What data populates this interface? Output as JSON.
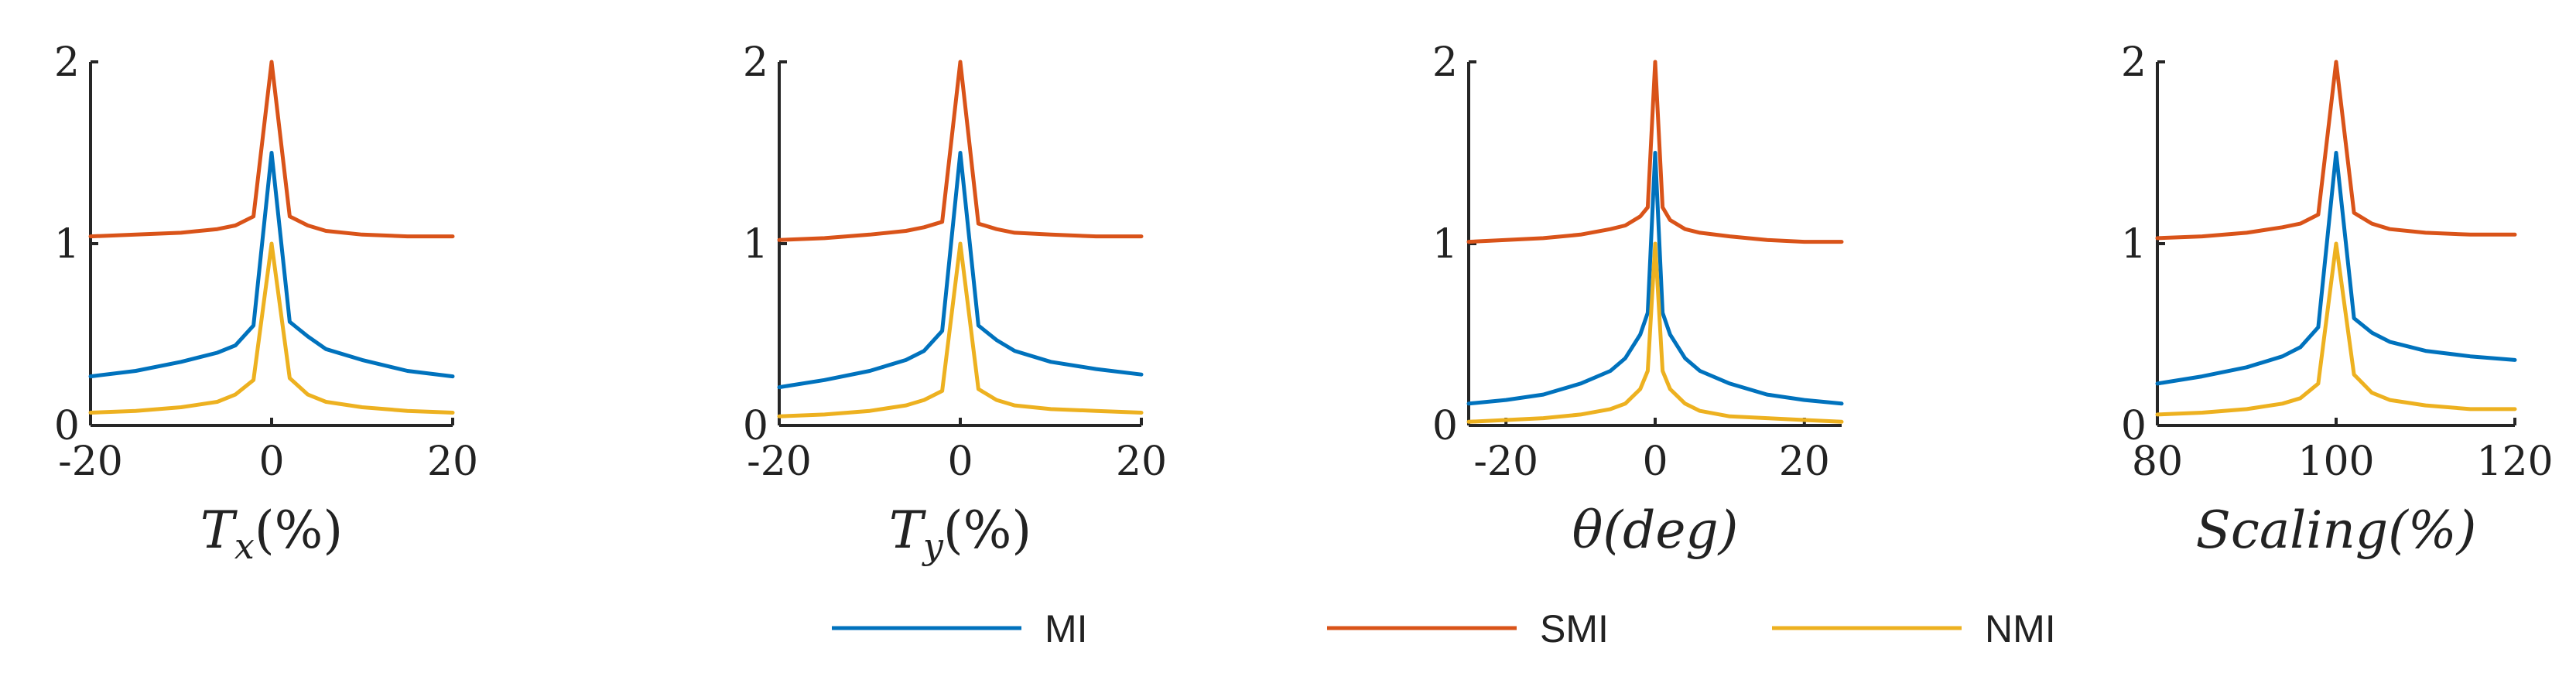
{
  "chart_data": [
    {
      "type": "line",
      "xlabel": "T_x(%)",
      "xlabel_main": "T",
      "xlabel_sub": "x",
      "xlabel_rest": "(%)",
      "xlim": [
        -20,
        20
      ],
      "ylim": [
        0,
        2
      ],
      "xticks": [
        -20,
        0,
        20
      ],
      "yticks": [
        0,
        1,
        2
      ],
      "series": [
        {
          "name": "MI",
          "x": [
            -20,
            -15,
            -10,
            -6,
            -4,
            -2,
            0,
            2,
            4,
            6,
            10,
            15,
            20
          ],
          "values": [
            0.27,
            0.3,
            0.35,
            0.4,
            0.44,
            0.55,
            1.5,
            0.57,
            0.49,
            0.42,
            0.36,
            0.3,
            0.27
          ]
        },
        {
          "name": "SMI",
          "x": [
            -20,
            -15,
            -10,
            -6,
            -4,
            -2,
            0,
            2,
            4,
            6,
            10,
            15,
            20
          ],
          "values": [
            1.04,
            1.05,
            1.06,
            1.08,
            1.1,
            1.15,
            2.0,
            1.15,
            1.1,
            1.07,
            1.05,
            1.04,
            1.04
          ]
        },
        {
          "name": "NMI",
          "x": [
            -20,
            -15,
            -10,
            -6,
            -4,
            -2,
            0,
            2,
            4,
            6,
            10,
            15,
            20
          ],
          "values": [
            0.07,
            0.08,
            0.1,
            0.13,
            0.17,
            0.25,
            1.0,
            0.26,
            0.17,
            0.13,
            0.1,
            0.08,
            0.07
          ]
        }
      ]
    },
    {
      "type": "line",
      "xlabel": "T_y(%)",
      "xlabel_main": "T",
      "xlabel_sub": "y",
      "xlabel_rest": "(%)",
      "xlim": [
        -20,
        20
      ],
      "ylim": [
        0,
        2
      ],
      "xticks": [
        -20,
        0,
        20
      ],
      "yticks": [
        0,
        1,
        2
      ],
      "series": [
        {
          "name": "MI",
          "x": [
            -20,
            -15,
            -10,
            -6,
            -4,
            -2,
            0,
            2,
            4,
            6,
            10,
            15,
            20
          ],
          "values": [
            0.21,
            0.25,
            0.3,
            0.36,
            0.41,
            0.52,
            1.5,
            0.55,
            0.47,
            0.41,
            0.35,
            0.31,
            0.28
          ]
        },
        {
          "name": "SMI",
          "x": [
            -20,
            -15,
            -10,
            -6,
            -4,
            -2,
            0,
            2,
            4,
            6,
            10,
            15,
            20
          ],
          "values": [
            1.02,
            1.03,
            1.05,
            1.07,
            1.09,
            1.12,
            2.0,
            1.11,
            1.08,
            1.06,
            1.05,
            1.04,
            1.04
          ]
        },
        {
          "name": "NMI",
          "x": [
            -20,
            -15,
            -10,
            -6,
            -4,
            -2,
            0,
            2,
            4,
            6,
            10,
            15,
            20
          ],
          "values": [
            0.05,
            0.06,
            0.08,
            0.11,
            0.14,
            0.19,
            1.0,
            0.2,
            0.14,
            0.11,
            0.09,
            0.08,
            0.07
          ]
        }
      ]
    },
    {
      "type": "line",
      "xlabel": "θ(deg)",
      "xlabel_main": "θ(deg)",
      "xlabel_sub": "",
      "xlabel_rest": "",
      "xlim": [
        -25,
        25
      ],
      "ylim": [
        0,
        2
      ],
      "xticks": [
        -20,
        0,
        20
      ],
      "yticks": [
        0,
        1,
        2
      ],
      "series": [
        {
          "name": "MI",
          "x": [
            -25,
            -20,
            -15,
            -10,
            -6,
            -4,
            -2,
            -1,
            0,
            1,
            2,
            4,
            6,
            10,
            15,
            20,
            25
          ],
          "values": [
            0.12,
            0.14,
            0.17,
            0.23,
            0.3,
            0.37,
            0.5,
            0.62,
            1.5,
            0.62,
            0.5,
            0.37,
            0.3,
            0.23,
            0.17,
            0.14,
            0.12
          ]
        },
        {
          "name": "SMI",
          "x": [
            -25,
            -20,
            -15,
            -10,
            -6,
            -4,
            -2,
            -1,
            0,
            1,
            2,
            4,
            6,
            10,
            15,
            20,
            25
          ],
          "values": [
            1.01,
            1.02,
            1.03,
            1.05,
            1.08,
            1.1,
            1.15,
            1.2,
            2.0,
            1.2,
            1.13,
            1.08,
            1.06,
            1.04,
            1.02,
            1.01,
            1.01
          ]
        },
        {
          "name": "NMI",
          "x": [
            -25,
            -20,
            -15,
            -10,
            -6,
            -4,
            -2,
            -1,
            0,
            1,
            2,
            4,
            6,
            10,
            15,
            20,
            25
          ],
          "values": [
            0.02,
            0.03,
            0.04,
            0.06,
            0.09,
            0.12,
            0.2,
            0.3,
            1.0,
            0.3,
            0.2,
            0.12,
            0.08,
            0.05,
            0.04,
            0.03,
            0.02
          ]
        }
      ]
    },
    {
      "type": "line",
      "xlabel": "Scaling(%)",
      "xlabel_main": "Scaling(%)",
      "xlabel_sub": "",
      "xlabel_rest": "",
      "xlim": [
        80,
        120
      ],
      "ylim": [
        0,
        2
      ],
      "xticks": [
        80,
        100,
        120
      ],
      "yticks": [
        0,
        1,
        2
      ],
      "series": [
        {
          "name": "MI",
          "x": [
            80,
            85,
            90,
            94,
            96,
            98,
            100,
            102,
            104,
            106,
            110,
            115,
            120
          ],
          "values": [
            0.23,
            0.27,
            0.32,
            0.38,
            0.43,
            0.54,
            1.5,
            0.59,
            0.51,
            0.46,
            0.41,
            0.38,
            0.36
          ]
        },
        {
          "name": "SMI",
          "x": [
            80,
            85,
            90,
            94,
            96,
            98,
            100,
            102,
            104,
            106,
            110,
            115,
            120
          ],
          "values": [
            1.03,
            1.04,
            1.06,
            1.09,
            1.11,
            1.16,
            2.0,
            1.17,
            1.11,
            1.08,
            1.06,
            1.05,
            1.05
          ]
        },
        {
          "name": "NMI",
          "x": [
            80,
            85,
            90,
            94,
            96,
            98,
            100,
            102,
            104,
            106,
            110,
            115,
            120
          ],
          "values": [
            0.06,
            0.07,
            0.09,
            0.12,
            0.15,
            0.23,
            1.0,
            0.28,
            0.18,
            0.14,
            0.11,
            0.09,
            0.09
          ]
        }
      ]
    }
  ],
  "legend": {
    "items": [
      {
        "name": "MI",
        "color": "#0072BD"
      },
      {
        "name": "SMI",
        "color": "#D95319"
      },
      {
        "name": "NMI",
        "color": "#EDB120"
      }
    ]
  },
  "colors": {
    "MI": "#0072BD",
    "SMI": "#D95319",
    "NMI": "#EDB120",
    "axis": "#262626"
  }
}
